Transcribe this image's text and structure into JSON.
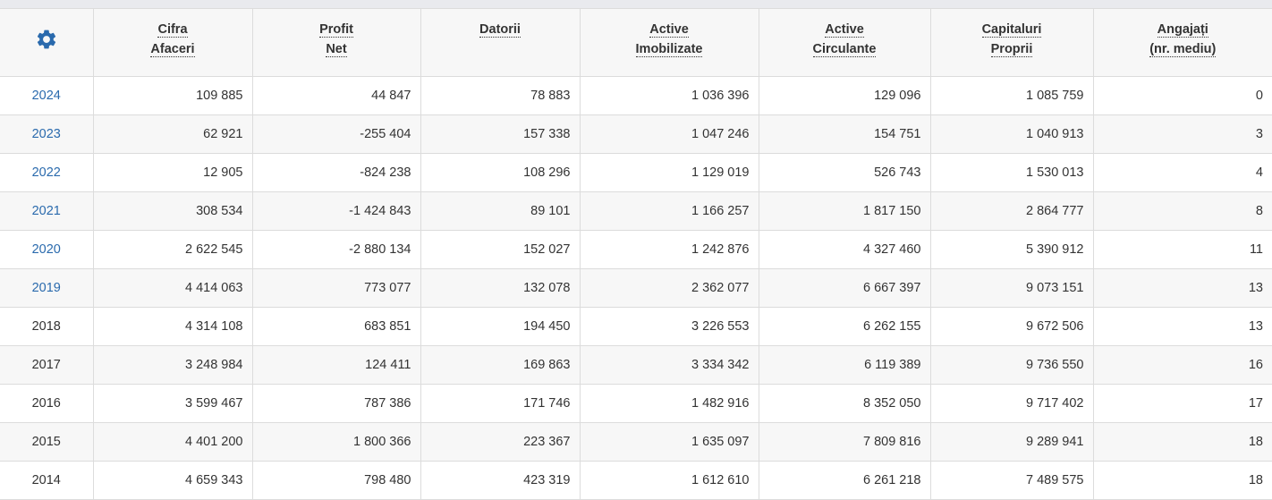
{
  "header": {
    "settings_icon": "gear-icon",
    "accent_color": "#2a6aad",
    "columns": [
      {
        "line1": "Cifra",
        "line2": "Afaceri"
      },
      {
        "line1": "Profit",
        "line2": "Net"
      },
      {
        "line1": "Datorii",
        "line2": ""
      },
      {
        "line1": "Active",
        "line2": "Imobilizate"
      },
      {
        "line1": "Active",
        "line2": "Circulante"
      },
      {
        "line1": "Capitaluri",
        "line2": "Proprii"
      },
      {
        "line1": "Angajați",
        "line2": "(nr. mediu)"
      }
    ]
  },
  "rows": [
    {
      "year": "2024",
      "link": true,
      "cells": [
        "109 885",
        "44 847",
        "78 883",
        "1 036 396",
        "129 096",
        "1 085 759",
        "0"
      ]
    },
    {
      "year": "2023",
      "link": true,
      "cells": [
        "62 921",
        "-255 404",
        "157 338",
        "1 047 246",
        "154 751",
        "1 040 913",
        "3"
      ]
    },
    {
      "year": "2022",
      "link": true,
      "cells": [
        "12 905",
        "-824 238",
        "108 296",
        "1 129 019",
        "526 743",
        "1 530 013",
        "4"
      ]
    },
    {
      "year": "2021",
      "link": true,
      "cells": [
        "308 534",
        "-1 424 843",
        "89 101",
        "1 166 257",
        "1 817 150",
        "2 864 777",
        "8"
      ]
    },
    {
      "year": "2020",
      "link": true,
      "cells": [
        "2 622 545",
        "-2 880 134",
        "152 027",
        "1 242 876",
        "4 327 460",
        "5 390 912",
        "11"
      ]
    },
    {
      "year": "2019",
      "link": true,
      "cells": [
        "4 414 063",
        "773 077",
        "132 078",
        "2 362 077",
        "6 667 397",
        "9 073 151",
        "13"
      ]
    },
    {
      "year": "2018",
      "link": false,
      "cells": [
        "4 314 108",
        "683 851",
        "194 450",
        "3 226 553",
        "6 262 155",
        "9 672 506",
        "13"
      ]
    },
    {
      "year": "2017",
      "link": false,
      "cells": [
        "3 248 984",
        "124 411",
        "169 863",
        "3 334 342",
        "6 119 389",
        "9 736 550",
        "16"
      ]
    },
    {
      "year": "2016",
      "link": false,
      "cells": [
        "3 599 467",
        "787 386",
        "171 746",
        "1 482 916",
        "8 352 050",
        "9 717 402",
        "17"
      ]
    },
    {
      "year": "2015",
      "link": false,
      "cells": [
        "4 401 200",
        "1 800 366",
        "223 367",
        "1 635 097",
        "7 809 816",
        "9 289 941",
        "18"
      ]
    },
    {
      "year": "2014",
      "link": false,
      "cells": [
        "4 659 343",
        "798 480",
        "423 319",
        "1 612 610",
        "6 261 218",
        "7 489 575",
        "18"
      ]
    }
  ]
}
